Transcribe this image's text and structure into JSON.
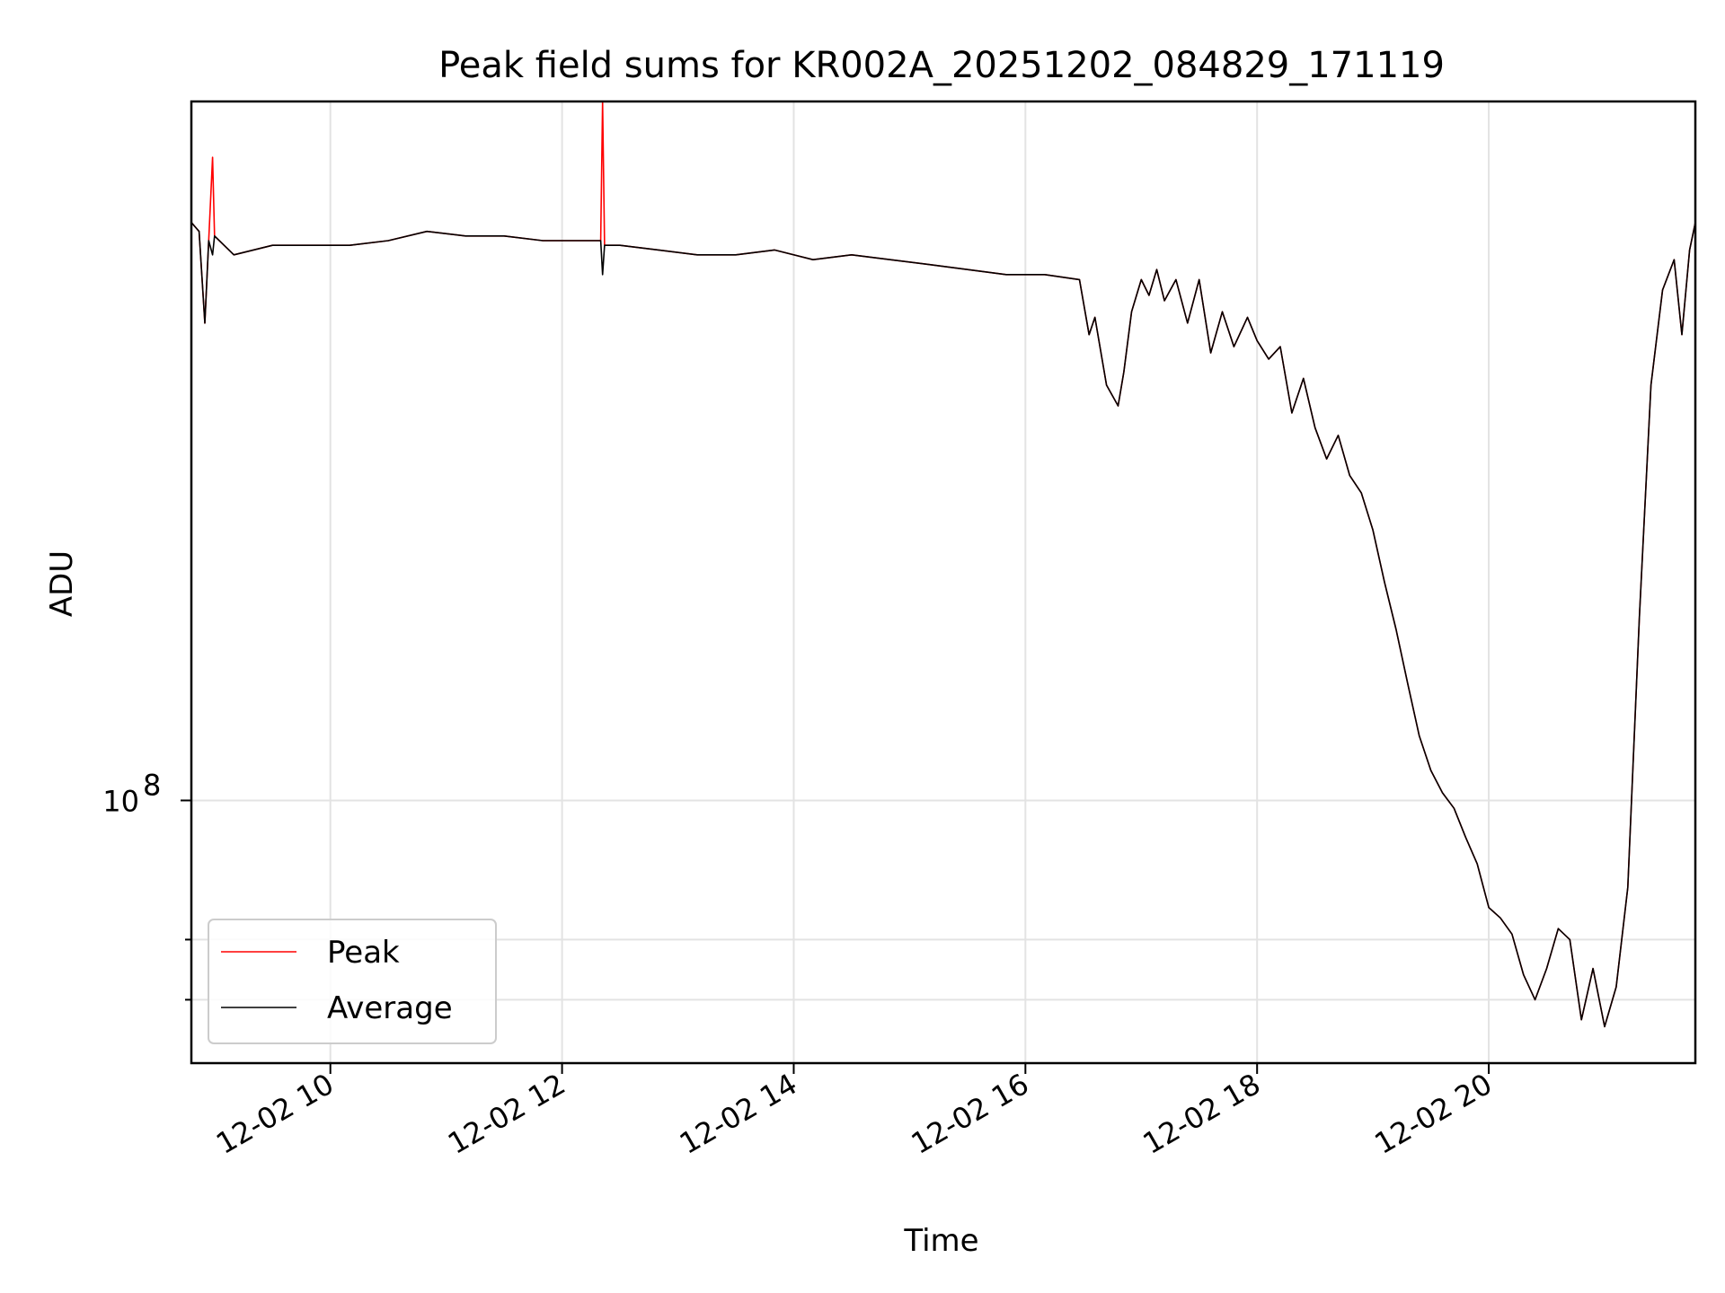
{
  "chart_data": {
    "type": "line",
    "title": "Peak field sums for KR002A_20251202_084829_171119",
    "xlabel": "Time",
    "ylabel": "ADU",
    "yscale": "log",
    "xlim": [
      "2025-12-02 08:48",
      "2025-12-02 21:47"
    ],
    "ylim": [
      51000000,
      600000000
    ],
    "x_ticks": [
      {
        "value": "2025-12-02 10:00",
        "label": "12-02 10"
      },
      {
        "value": "2025-12-02 12:00",
        "label": "12-02 12"
      },
      {
        "value": "2025-12-02 14:00",
        "label": "12-02 14"
      },
      {
        "value": "2025-12-02 16:00",
        "label": "12-02 16"
      },
      {
        "value": "2025-12-02 18:00",
        "label": "12-02 18"
      },
      {
        "value": "2025-12-02 20:00",
        "label": "12-02 20"
      }
    ],
    "y_ticks": [
      {
        "value": 100000000,
        "base": "10",
        "exp": "8",
        "major": true
      },
      {
        "value": 60000000,
        "major": false
      },
      {
        "value": 70000000,
        "major": false
      }
    ],
    "grid": true,
    "legend_position": "lower-left",
    "x": [
      "2025-12-02 08:48",
      "2025-12-02 08:52",
      "2025-12-02 08:55",
      "2025-12-02 08:57",
      "2025-12-02 08:59",
      "2025-12-02 09:00",
      "2025-12-02 09:10",
      "2025-12-02 09:30",
      "2025-12-02 09:50",
      "2025-12-02 10:10",
      "2025-12-02 10:30",
      "2025-12-02 10:50",
      "2025-12-02 11:10",
      "2025-12-02 11:30",
      "2025-12-02 11:50",
      "2025-12-02 12:05",
      "2025-12-02 12:10",
      "2025-12-02 12:20",
      "2025-12-02 12:21",
      "2025-12-02 12:22",
      "2025-12-02 12:30",
      "2025-12-02 12:50",
      "2025-12-02 13:10",
      "2025-12-02 13:30",
      "2025-12-02 13:50",
      "2025-12-02 14:10",
      "2025-12-02 14:30",
      "2025-12-02 14:50",
      "2025-12-02 15:10",
      "2025-12-02 15:30",
      "2025-12-02 15:50",
      "2025-12-02 16:10",
      "2025-12-02 16:28",
      "2025-12-02 16:33",
      "2025-12-02 16:36",
      "2025-12-02 16:42",
      "2025-12-02 16:48",
      "2025-12-02 16:51",
      "2025-12-02 16:55",
      "2025-12-02 17:00",
      "2025-12-02 17:04",
      "2025-12-02 17:08",
      "2025-12-02 17:12",
      "2025-12-02 17:18",
      "2025-12-02 17:24",
      "2025-12-02 17:30",
      "2025-12-02 17:36",
      "2025-12-02 17:42",
      "2025-12-02 17:48",
      "2025-12-02 17:55",
      "2025-12-02 18:00",
      "2025-12-02 18:06",
      "2025-12-02 18:12",
      "2025-12-02 18:18",
      "2025-12-02 18:24",
      "2025-12-02 18:30",
      "2025-12-02 18:36",
      "2025-12-02 18:42",
      "2025-12-02 18:48",
      "2025-12-02 18:54",
      "2025-12-02 19:00",
      "2025-12-02 19:06",
      "2025-12-02 19:12",
      "2025-12-02 19:18",
      "2025-12-02 19:24",
      "2025-12-02 19:30",
      "2025-12-02 19:36",
      "2025-12-02 19:42",
      "2025-12-02 19:48",
      "2025-12-02 19:54",
      "2025-12-02 20:00",
      "2025-12-02 20:06",
      "2025-12-02 20:12",
      "2025-12-02 20:18",
      "2025-12-02 20:24",
      "2025-12-02 20:30",
      "2025-12-02 20:36",
      "2025-12-02 20:42",
      "2025-12-02 20:48",
      "2025-12-02 20:54",
      "2025-12-02 21:00",
      "2025-12-02 21:06",
      "2025-12-02 21:12",
      "2025-12-02 21:18",
      "2025-12-02 21:24",
      "2025-12-02 21:30",
      "2025-12-02 21:36",
      "2025-12-02 21:40",
      "2025-12-02 21:44",
      "2025-12-02 21:47"
    ],
    "series": [
      {
        "name": "Peak",
        "color": "#ff0000",
        "values": [
          440000000,
          430000000,
          340000000,
          420000000,
          520000000,
          425000000,
          405000000,
          415000000,
          415000000,
          415000000,
          420000000,
          430000000,
          425000000,
          425000000,
          420000000,
          420000000,
          420000000,
          420000000,
          600000000,
          415000000,
          415000000,
          410000000,
          405000000,
          405000000,
          410000000,
          400000000,
          405000000,
          400000000,
          395000000,
          390000000,
          385000000,
          385000000,
          380000000,
          330000000,
          345000000,
          290000000,
          275000000,
          300000000,
          350000000,
          380000000,
          365000000,
          390000000,
          360000000,
          380000000,
          340000000,
          380000000,
          315000000,
          350000000,
          320000000,
          345000000,
          325000000,
          310000000,
          320000000,
          270000000,
          295000000,
          260000000,
          240000000,
          255000000,
          230000000,
          220000000,
          200000000,
          175000000,
          155000000,
          135000000,
          118000000,
          108000000,
          102000000,
          98000000,
          91000000,
          85000000,
          76000000,
          74000000,
          71000000,
          64000000,
          60000000,
          65000000,
          72000000,
          70000000,
          57000000,
          65000000,
          56000000,
          62000000,
          80000000,
          160000000,
          290000000,
          370000000,
          400000000,
          330000000,
          410000000,
          440000000
        ]
      },
      {
        "name": "Average",
        "color": "#000000",
        "values": [
          440000000,
          430000000,
          340000000,
          420000000,
          405000000,
          425000000,
          405000000,
          415000000,
          415000000,
          415000000,
          420000000,
          430000000,
          425000000,
          425000000,
          420000000,
          420000000,
          420000000,
          420000000,
          385000000,
          415000000,
          415000000,
          410000000,
          405000000,
          405000000,
          410000000,
          400000000,
          405000000,
          400000000,
          395000000,
          390000000,
          385000000,
          385000000,
          380000000,
          330000000,
          345000000,
          290000000,
          275000000,
          300000000,
          350000000,
          380000000,
          365000000,
          390000000,
          360000000,
          380000000,
          340000000,
          380000000,
          315000000,
          350000000,
          320000000,
          345000000,
          325000000,
          310000000,
          320000000,
          270000000,
          295000000,
          260000000,
          240000000,
          255000000,
          230000000,
          220000000,
          200000000,
          175000000,
          155000000,
          135000000,
          118000000,
          108000000,
          102000000,
          98000000,
          91000000,
          85000000,
          76000000,
          74000000,
          71000000,
          64000000,
          60000000,
          65000000,
          72000000,
          70000000,
          57000000,
          65000000,
          56000000,
          62000000,
          80000000,
          160000000,
          290000000,
          370000000,
          400000000,
          330000000,
          410000000,
          440000000
        ]
      }
    ]
  }
}
